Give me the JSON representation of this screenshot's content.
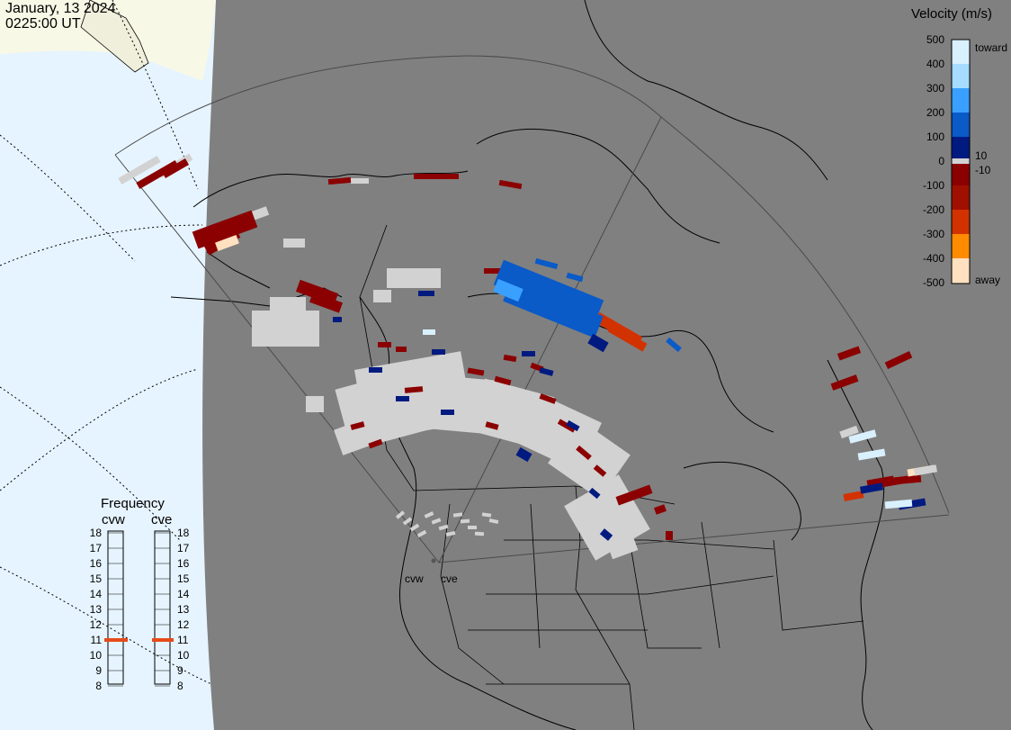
{
  "header": {
    "date": "January, 13 2024",
    "time": "0225:00 UT"
  },
  "velocity_scale": {
    "title": "Velocity (m/s)",
    "ticks": [
      "500",
      "400",
      "300",
      "200",
      "100",
      "0",
      "-100",
      "-200",
      "-300",
      "-400",
      "-500"
    ],
    "near_zero_labels": [
      "10",
      "-10"
    ],
    "toward_label": "toward",
    "away_label": "away",
    "colors": {
      "toward_max": "#d9f0ff",
      "toward_high": "#3aa0ff",
      "toward_mid": "#0a5ac8",
      "toward_low": "#001a80",
      "low_velocity": "#d2d2d2",
      "away_low": "#8b0000",
      "away_mid": "#d23200",
      "away_high": "#ff8c00",
      "away_max": "#ffe0c0",
      "land_background": "#808080",
      "night_terminator": "#e6f4ff",
      "daylight": "#f8f8e6",
      "frequency_marker": "#e64a19"
    }
  },
  "frequency_panel": {
    "title": "Frequency",
    "radars": [
      "cvw",
      "cve"
    ],
    "scale_mhz": [
      "18",
      "17",
      "16",
      "15",
      "14",
      "13",
      "12",
      "11",
      "10",
      "9",
      "8"
    ],
    "cvw_mhz": 11,
    "cve_mhz": 11
  },
  "map": {
    "site_labels": [
      "cvw",
      "cve"
    ]
  }
}
